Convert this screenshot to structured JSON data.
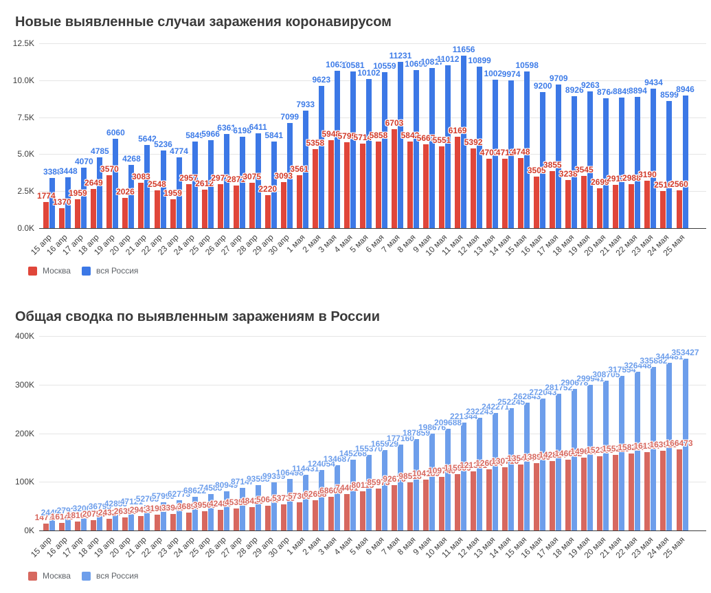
{
  "page": {
    "background_color": "#ffffff"
  },
  "chart_data": [
    {
      "type": "bar",
      "title": "Новые выявленные случаи заражения коронавирусом",
      "categories": [
        "15 апр",
        "16 апр",
        "17 апр",
        "18 апр",
        "19 апр",
        "20 апр",
        "21 апр",
        "22 апр",
        "23 апр",
        "24 апр",
        "25 апр",
        "26 апр",
        "27 апр",
        "28 апр",
        "29 апр",
        "30 апр",
        "1 мая",
        "2 мая",
        "3 мая",
        "4 мая",
        "5 мая",
        "6 мая",
        "7 мая",
        "8 мая",
        "9 мая",
        "10 мая",
        "11 мая",
        "12 мая",
        "13 мая",
        "14 мая",
        "15 мая",
        "16 мая",
        "17 мая",
        "18 мая",
        "19 мая",
        "20 мая",
        "21 мая",
        "22 мая",
        "23 мая",
        "24 мая",
        "25 мая"
      ],
      "series": [
        {
          "name": "Москва",
          "color": "#e0463a",
          "label_color": "#d23b2a",
          "values": [
            1774,
            1370,
            1959,
            2649,
            3570,
            2026,
            3083,
            2548,
            1959,
            2957,
            2612,
            2971,
            2871,
            3075,
            2220,
            3093,
            3561,
            5358,
            5948,
            5795,
            5714,
            5858,
            6703,
            5842,
            5667,
            5551,
            6169,
            5392,
            4703,
            4712,
            4748,
            3505,
            3855,
            3238,
            3545,
            2699,
            2913,
            2988,
            3190,
            2516,
            2560
          ]
        },
        {
          "name": "вся Россия",
          "color": "#3c78e6",
          "label_color": "#3e7ce8",
          "values": [
            3388,
            3448,
            4070,
            4785,
            6060,
            4268,
            5642,
            5236,
            4774,
            5849,
            5966,
            6361,
            6198,
            6411,
            5841,
            7099,
            7933,
            9623,
            10633,
            10581,
            10102,
            10559,
            11231,
            10699,
            10817,
            11012,
            11656,
            10899,
            10028,
            9974,
            10598,
            9200,
            9709,
            8926,
            9263,
            8764,
            8849,
            8894,
            9434,
            8599,
            8946
          ]
        }
      ],
      "ylim": [
        0,
        12500
      ],
      "yticks": [
        {
          "value": 0,
          "label": "0.0K"
        },
        {
          "value": 2500,
          "label": "2.5K"
        },
        {
          "value": 5000,
          "label": "5.0K"
        },
        {
          "value": 7500,
          "label": "7.5K"
        },
        {
          "value": 10000,
          "label": "10.0K"
        },
        {
          "value": 12500,
          "label": "12.5K"
        }
      ],
      "grid": true,
      "value_labels": true,
      "legend_position": "bottom-left"
    },
    {
      "type": "bar",
      "title": "Общая сводка по выявленным заражениям в России",
      "categories": [
        "15 апр",
        "16 апр",
        "17 апр",
        "18 апр",
        "19 апр",
        "20 апр",
        "21 апр",
        "22 апр",
        "23 апр",
        "24 апр",
        "25 апр",
        "26 апр",
        "27 апр",
        "28 апр",
        "29 апр",
        "30 апр",
        "1 мая",
        "2 мая",
        "3 мая",
        "4 мая",
        "5 мая",
        "6 мая",
        "7 мая",
        "8 мая",
        "9 мая",
        "10 мая",
        "11 мая",
        "12 мая",
        "13 мая",
        "14 мая",
        "15 мая",
        "16 мая",
        "17 мая",
        "18 мая",
        "19 мая",
        "20 мая",
        "21 мая",
        "22 мая",
        "23 мая",
        "24 мая",
        "25 мая"
      ],
      "series": [
        {
          "name": "Москва",
          "color": "#d7685f",
          "label_color": "#d7685f",
          "values": [
            14776,
            16146,
            18105,
            20754,
            24324,
            26350,
            29433,
            31981,
            33940,
            36897,
            39509,
            42480,
            45351,
            48426,
            50646,
            53739,
            57300,
            62658,
            68606,
            74401,
            80115,
            85973,
            92676,
            98518,
            104189,
            109740,
            115909,
            121301,
            126004,
            130716,
            135464,
            138969,
            142824,
            146062,
            149607,
            152306,
            155219,
            158207,
            161397,
            163913,
            166473
          ]
        },
        {
          "name": "вся Россия",
          "color": "#6d9eeb",
          "label_color": "#6d9eeb",
          "values": [
            24490,
            27938,
            32008,
            36793,
            42853,
            47121,
            52763,
            57999,
            62773,
            68622,
            74588,
            80949,
            87147,
            93558,
            99399,
            106498,
            114431,
            124054,
            134687,
            145268,
            155370,
            165929,
            177160,
            187859,
            198676,
            209688,
            221344,
            232243,
            242271,
            252245,
            262843,
            272043,
            281752,
            290678,
            299941,
            308705,
            317554,
            326448,
            335882,
            344481,
            353427
          ]
        }
      ],
      "ylim": [
        0,
        400000
      ],
      "yticks": [
        {
          "value": 0,
          "label": "0K"
        },
        {
          "value": 100000,
          "label": "100K"
        },
        {
          "value": 200000,
          "label": "200K"
        },
        {
          "value": 300000,
          "label": "300K"
        },
        {
          "value": 400000,
          "label": "400K"
        }
      ],
      "grid": true,
      "value_labels": true,
      "legend_position": "bottom-left"
    }
  ]
}
